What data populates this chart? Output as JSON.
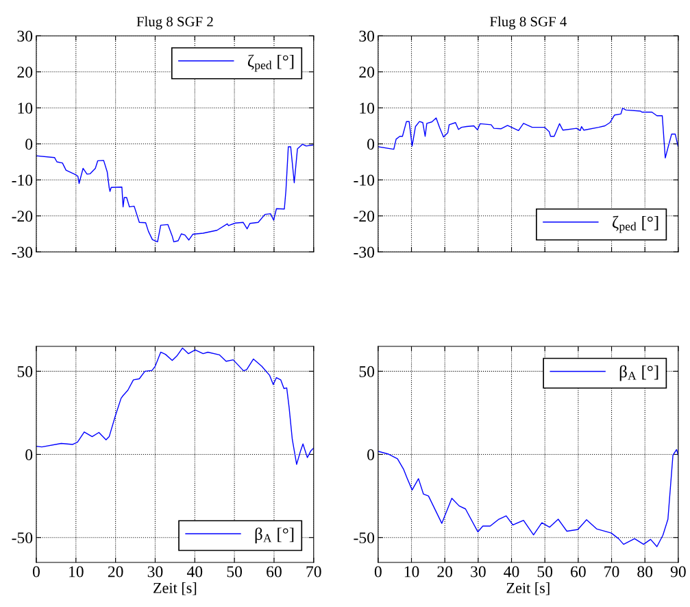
{
  "chart_data": [
    {
      "type": "line",
      "title": "Flug 8 SGF 2",
      "xlim": [
        0,
        70
      ],
      "xticks": [
        0,
        10,
        20,
        30,
        40,
        50,
        60,
        70
      ],
      "ylim": [
        -30,
        30
      ],
      "yticks": [
        -30,
        -20,
        -10,
        0,
        10,
        20,
        30
      ],
      "tick_labels": "y",
      "grid": true,
      "legend": "top right",
      "line_style": "solid",
      "marker": "none",
      "series": [
        {
          "name": "ζ$_{ped}$ [°]",
          "color": "#0000ff",
          "x": [
            0,
            4.6,
            5.2,
            6.6,
            7.5,
            9.8,
            10.5,
            10.8,
            11.8,
            12.8,
            13.6,
            14.9,
            15.5,
            17,
            17.9,
            18.4,
            18.6,
            18.9,
            21.6,
            21.9,
            22.2,
            22.8,
            23.5,
            24.7,
            26,
            27.6,
            28.3,
            29.3,
            30.6,
            31.4,
            33.2,
            34.3,
            34.7,
            35.8,
            36.6,
            37.5,
            38.5,
            39.5,
            42.1,
            45.6,
            48.2,
            48.5,
            50.2,
            52.2,
            53.2,
            53.9,
            56,
            57.7,
            59.1,
            59.9,
            60.6,
            62.6,
            63,
            63.6,
            64.2,
            65.1,
            65.9,
            67.2,
            68.1,
            70
          ],
          "values": [
            -3.3,
            -3.8,
            -5,
            -5.3,
            -7.3,
            -8.5,
            -9,
            -11,
            -6.8,
            -8.4,
            -8.3,
            -6.8,
            -4.7,
            -4.6,
            -7.8,
            -12.2,
            -13.2,
            -12.1,
            -12,
            -17.5,
            -14.9,
            -14.9,
            -17.5,
            -17.3,
            -21.8,
            -21.9,
            -24.3,
            -26.6,
            -27.2,
            -22.6,
            -22.4,
            -25.6,
            -27.2,
            -26.9,
            -25,
            -25.3,
            -26.7,
            -25.1,
            -24.8,
            -24,
            -22.2,
            -22.7,
            -22,
            -21.8,
            -23.6,
            -22.1,
            -21.8,
            -19.6,
            -19.4,
            -21.2,
            -18,
            -18.1,
            -12.9,
            -0.8,
            -0.8,
            -10.8,
            -1.4,
            -0.1,
            -0.6,
            -0.3
          ]
        }
      ]
    },
    {
      "type": "line",
      "title": "Flug 8 SGF 4",
      "xlim": [
        0,
        90
      ],
      "xticks": [
        0,
        10,
        20,
        30,
        40,
        50,
        60,
        70,
        80,
        90
      ],
      "ylim": [
        -30,
        30
      ],
      "yticks": [
        -30,
        -20,
        -10,
        0,
        10,
        20,
        30
      ],
      "tick_labels": "y",
      "grid": true,
      "legend": "bottom right",
      "line_style": "solid",
      "marker": "none",
      "series": [
        {
          "name": "ζ$_{ped}$ [°]",
          "color": "#0000ff",
          "x": [
            0,
            4.7,
            5.4,
            6.5,
            7.3,
            8.5,
            9.3,
            10.2,
            11.2,
            12.4,
            13.4,
            14.1,
            14.6,
            16.1,
            17.4,
            18.4,
            19.6,
            20.9,
            21.3,
            23.2,
            24.1,
            25,
            26.5,
            28.7,
            29.8,
            30.6,
            33.9,
            34.7,
            36.9,
            38.8,
            42.1,
            43.6,
            46.2,
            49.9,
            51.3,
            51.7,
            52.8,
            54.4,
            55.4,
            59.5,
            60.6,
            61,
            61.7,
            66.1,
            68,
            69.5,
            70.9,
            72.8,
            73.3,
            74.3,
            78.7,
            79.1,
            82.1,
            83.6,
            85.2,
            86.1,
            86.9,
            88,
            89.1,
            89.9
          ],
          "values": [
            -0.8,
            -1.5,
            1.3,
            2.1,
            2.1,
            6.2,
            6.2,
            -0.6,
            4.8,
            6.2,
            5.9,
            2.1,
            5.7,
            6.1,
            7.2,
            4.6,
            1.9,
            3.1,
            5.3,
            5.9,
            4,
            4.6,
            4.8,
            5,
            3.9,
            5.6,
            5.3,
            4.3,
            4.2,
            5.1,
            3.7,
            5.7,
            4.6,
            4.6,
            3.4,
            2.1,
            2.1,
            5.6,
            3.8,
            4.3,
            3.7,
            4.8,
            3.8,
            4.6,
            5,
            5.9,
            8,
            8.3,
            9.9,
            9.4,
            9.1,
            8.8,
            8.8,
            7.8,
            7.8,
            -3.9,
            -1.1,
            2.7,
            2.7,
            -0.6
          ]
        }
      ]
    },
    {
      "type": "line",
      "xlabel": "Zeit [s]",
      "xlim": [
        0,
        70
      ],
      "xticks": [
        0,
        10,
        20,
        30,
        40,
        50,
        60,
        70
      ],
      "ylim": [
        -65,
        65
      ],
      "yticks": [
        -50,
        0,
        50
      ],
      "grid": true,
      "legend": "bottom right",
      "line_style": "solid",
      "marker": "none",
      "series": [
        {
          "name": "β$_{A}$ [°]",
          "color": "#0000ff",
          "x": [
            0,
            1.4,
            6.3,
            9.2,
            10.4,
            12.1,
            14.1,
            15.8,
            17.6,
            18.4,
            19.9,
            21.4,
            21.9,
            23.1,
            24.5,
            26,
            27.4,
            29.2,
            30,
            31.4,
            32.6,
            34.3,
            35.5,
            36.9,
            38.4,
            40.1,
            42.1,
            43.3,
            46.2,
            47.9,
            49.7,
            52.3,
            53.1,
            54.8,
            56.9,
            58.9,
            59.8,
            60.6,
            61.7,
            62.5,
            63.2,
            63.8,
            64.6,
            65.7,
            66.7,
            67.3,
            68.4,
            69.3,
            70
          ],
          "values": [
            4.9,
            4.5,
            6.6,
            6,
            7.4,
            13.5,
            10.7,
            13.2,
            8.8,
            10.7,
            22.8,
            33.8,
            35.4,
            38.6,
            44.8,
            45.5,
            50,
            50.5,
            53,
            61.5,
            60.2,
            56.5,
            59.3,
            64,
            60.6,
            62.9,
            60.6,
            61.5,
            59.9,
            56,
            56.9,
            50.3,
            51,
            57.4,
            53,
            47.5,
            42,
            46.2,
            44.8,
            39.6,
            40,
            28.3,
            9.1,
            -6,
            2.2,
            6.3,
            -1.9,
            2.2,
            3.8
          ]
        }
      ]
    },
    {
      "type": "line",
      "xlabel": "Zeit [s]",
      "xlim": [
        0,
        90
      ],
      "xticks": [
        0,
        10,
        20,
        30,
        40,
        50,
        60,
        70,
        80,
        90
      ],
      "ylim": [
        -65,
        65
      ],
      "yticks": [
        -50,
        0,
        50
      ],
      "grid": true,
      "legend": "top right",
      "line_style": "solid",
      "marker": "none",
      "series": [
        {
          "name": "β$_{A}$ [°]",
          "color": "#0000ff",
          "x": [
            0,
            3.2,
            5.8,
            7.6,
            8.7,
            10.2,
            12.1,
            13.6,
            15.1,
            19.1,
            22.1,
            24.3,
            26.2,
            29.9,
            31.4,
            33.6,
            36.2,
            38.4,
            40.4,
            43.6,
            46.6,
            49.1,
            51.4,
            54,
            56.6,
            59.9,
            62.5,
            65.5,
            69.9,
            72.1,
            73.6,
            76.9,
            79.6,
            81.7,
            83.6,
            85.4,
            86.9,
            88.4,
            89.5,
            90
          ],
          "values": [
            1.9,
            0.1,
            -2.6,
            -8.8,
            -14.3,
            -21.4,
            -14.6,
            -23.9,
            -25,
            -41.5,
            -26.4,
            -31,
            -32.8,
            -46.6,
            -43.1,
            -43.1,
            -39,
            -37,
            -42.4,
            -39.7,
            -48.4,
            -41.1,
            -43.8,
            -39,
            -46.2,
            -45.2,
            -39.3,
            -44.8,
            -47.3,
            -50.7,
            -54.1,
            -50.7,
            -54.1,
            -51.1,
            -55.5,
            -48.6,
            -39,
            -0.5,
            2.9,
            -0.5
          ]
        }
      ]
    }
  ]
}
